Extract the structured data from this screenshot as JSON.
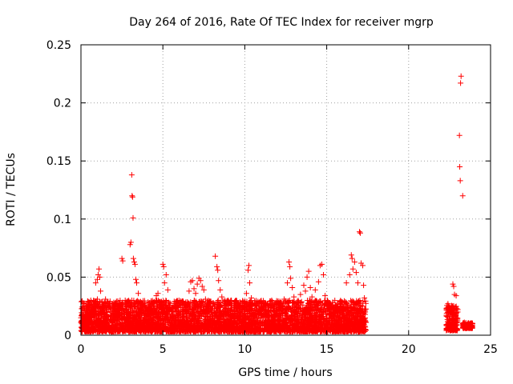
{
  "chart_data": {
    "type": "scatter",
    "title": "Day 264 of 2016, Rate Of TEC Index for receiver mgrp",
    "xlabel": "GPS time / hours",
    "ylabel": "ROTI / TECUs",
    "xlim": [
      0,
      25
    ],
    "ylim": [
      0,
      0.25
    ],
    "x_ticks": [
      0,
      5,
      10,
      15,
      20,
      25
    ],
    "y_ticks": [
      0,
      0.05,
      0.1,
      0.15,
      0.2,
      0.25
    ],
    "x_tick_labels": [
      "0",
      "5",
      "10",
      "15",
      "20",
      "25"
    ],
    "y_tick_labels": [
      "0",
      "0.05",
      "0.1",
      "0.15",
      "0.2",
      "0.25"
    ],
    "grid": true,
    "marker": "+",
    "color": "#ff0000",
    "series": [
      {
        "name": "ROTI",
        "points": [
          [
            0.1,
            0.012
          ],
          [
            0.2,
            0.023
          ],
          [
            0.3,
            0.018
          ],
          [
            0.4,
            0.009
          ],
          [
            0.5,
            0.014
          ],
          [
            0.6,
            0.021
          ],
          [
            0.7,
            0.011
          ],
          [
            0.8,
            0.026
          ],
          [
            0.9,
            0.045
          ],
          [
            1.0,
            0.048
          ],
          [
            1.05,
            0.052
          ],
          [
            1.1,
            0.057
          ],
          [
            1.15,
            0.05
          ],
          [
            1.2,
            0.038
          ],
          [
            1.0,
            0.031
          ],
          [
            0.85,
            0.029
          ],
          [
            1.3,
            0.024
          ],
          [
            1.5,
            0.031
          ],
          [
            1.7,
            0.022
          ],
          [
            1.9,
            0.019
          ],
          [
            2.1,
            0.028
          ],
          [
            2.3,
            0.025
          ],
          [
            2.5,
            0.066
          ],
          [
            2.55,
            0.064
          ],
          [
            2.7,
            0.03
          ],
          [
            2.9,
            0.028
          ],
          [
            3.0,
            0.078
          ],
          [
            3.05,
            0.08
          ],
          [
            3.1,
            0.138
          ],
          [
            3.12,
            0.12
          ],
          [
            3.15,
            0.119
          ],
          [
            3.18,
            0.101
          ],
          [
            3.2,
            0.066
          ],
          [
            3.25,
            0.063
          ],
          [
            3.3,
            0.061
          ],
          [
            3.35,
            0.048
          ],
          [
            3.4,
            0.045
          ],
          [
            3.5,
            0.036
          ],
          [
            3.6,
            0.027
          ],
          [
            3.8,
            0.02
          ],
          [
            4.0,
            0.016
          ],
          [
            4.2,
            0.022
          ],
          [
            4.4,
            0.018
          ],
          [
            4.5,
            0.028
          ],
          [
            4.6,
            0.034
          ],
          [
            4.7,
            0.036
          ],
          [
            4.8,
            0.026
          ],
          [
            5.0,
            0.061
          ],
          [
            5.05,
            0.059
          ],
          [
            5.1,
            0.045
          ],
          [
            5.2,
            0.052
          ],
          [
            5.3,
            0.039
          ],
          [
            5.4,
            0.021
          ],
          [
            5.6,
            0.015
          ],
          [
            5.8,
            0.021
          ],
          [
            6.0,
            0.018
          ],
          [
            6.2,
            0.028
          ],
          [
            6.4,
            0.025
          ],
          [
            6.6,
            0.038
          ],
          [
            6.7,
            0.046
          ],
          [
            6.8,
            0.047
          ],
          [
            6.9,
            0.04
          ],
          [
            7.0,
            0.036
          ],
          [
            7.1,
            0.044
          ],
          [
            7.2,
            0.049
          ],
          [
            7.3,
            0.047
          ],
          [
            7.4,
            0.042
          ],
          [
            7.5,
            0.039
          ],
          [
            7.6,
            0.031
          ],
          [
            7.8,
            0.024
          ],
          [
            8.0,
            0.022
          ],
          [
            8.2,
            0.068
          ],
          [
            8.3,
            0.059
          ],
          [
            8.35,
            0.056
          ],
          [
            8.4,
            0.047
          ],
          [
            8.5,
            0.039
          ],
          [
            8.6,
            0.033
          ],
          [
            8.8,
            0.027
          ],
          [
            9.0,
            0.023
          ],
          [
            9.2,
            0.021
          ],
          [
            9.4,
            0.029
          ],
          [
            9.6,
            0.026
          ],
          [
            9.8,
            0.022
          ],
          [
            10.0,
            0.023
          ],
          [
            10.1,
            0.036
          ],
          [
            10.2,
            0.056
          ],
          [
            10.25,
            0.06
          ],
          [
            10.3,
            0.045
          ],
          [
            10.4,
            0.032
          ],
          [
            10.6,
            0.028
          ],
          [
            10.8,
            0.029
          ],
          [
            11.0,
            0.027
          ],
          [
            11.2,
            0.024
          ],
          [
            11.4,
            0.021
          ],
          [
            11.6,
            0.02
          ],
          [
            11.8,
            0.023
          ],
          [
            12.0,
            0.026
          ],
          [
            12.2,
            0.023
          ],
          [
            12.4,
            0.031
          ],
          [
            12.6,
            0.045
          ],
          [
            12.7,
            0.063
          ],
          [
            12.75,
            0.059
          ],
          [
            12.8,
            0.049
          ],
          [
            12.9,
            0.041
          ],
          [
            13.0,
            0.033
          ],
          [
            13.2,
            0.029
          ],
          [
            13.4,
            0.035
          ],
          [
            13.6,
            0.043
          ],
          [
            13.7,
            0.038
          ],
          [
            13.8,
            0.05
          ],
          [
            13.9,
            0.055
          ],
          [
            14.0,
            0.041
          ],
          [
            14.1,
            0.033
          ],
          [
            14.3,
            0.039
          ],
          [
            14.5,
            0.046
          ],
          [
            14.6,
            0.06
          ],
          [
            14.7,
            0.061
          ],
          [
            14.8,
            0.052
          ],
          [
            14.9,
            0.034
          ],
          [
            15.0,
            0.026
          ],
          [
            15.2,
            0.022
          ],
          [
            15.5,
            0.019
          ],
          [
            15.8,
            0.016
          ],
          [
            16.0,
            0.015
          ],
          [
            16.2,
            0.045
          ],
          [
            16.4,
            0.052
          ],
          [
            16.5,
            0.069
          ],
          [
            16.55,
            0.066
          ],
          [
            16.6,
            0.057
          ],
          [
            16.7,
            0.063
          ],
          [
            16.8,
            0.054
          ],
          [
            16.9,
            0.045
          ],
          [
            17.0,
            0.089
          ],
          [
            17.05,
            0.088
          ],
          [
            17.1,
            0.062
          ],
          [
            17.2,
            0.06
          ],
          [
            17.25,
            0.043
          ],
          [
            17.3,
            0.032
          ],
          [
            17.35,
            0.02
          ],
          [
            17.4,
            0.011
          ],
          [
            22.4,
            0.027
          ],
          [
            22.5,
            0.024
          ],
          [
            22.6,
            0.018
          ],
          [
            22.7,
            0.044
          ],
          [
            22.75,
            0.042
          ],
          [
            22.8,
            0.035
          ],
          [
            22.9,
            0.034
          ],
          [
            23.0,
            0.022
          ],
          [
            23.1,
            0.172
          ],
          [
            23.12,
            0.145
          ],
          [
            23.15,
            0.133
          ],
          [
            23.17,
            0.217
          ],
          [
            23.2,
            0.223
          ],
          [
            23.3,
            0.12
          ],
          [
            23.4,
            0.011
          ],
          [
            23.6,
            0.009
          ],
          [
            23.8,
            0.01
          ],
          [
            22.3,
            0.009
          ],
          [
            22.5,
            0.008
          ]
        ],
        "dense_band": {
          "description": "dense cloud of points between 0.003 and 0.030 TECU",
          "segments": [
            {
              "x_from": 0.0,
              "x_to": 17.4,
              "y_from": 0.003,
              "y_to": 0.03
            },
            {
              "x_from": 22.3,
              "x_to": 23.0,
              "y_from": 0.004,
              "y_to": 0.026
            },
            {
              "x_from": 23.3,
              "x_to": 23.9,
              "y_from": 0.006,
              "y_to": 0.011
            }
          ]
        }
      }
    ]
  }
}
